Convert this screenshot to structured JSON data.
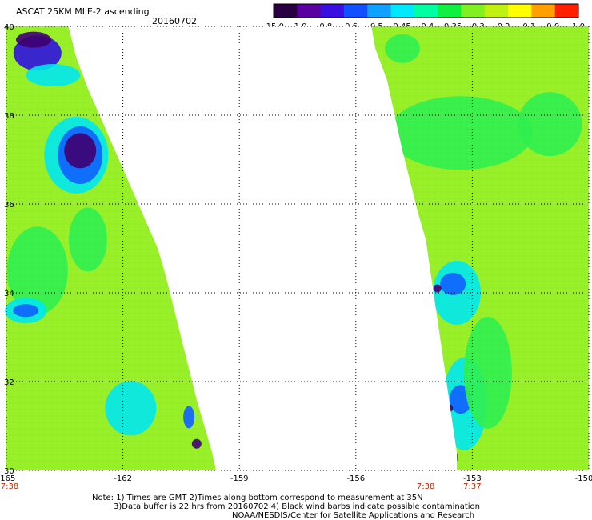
{
  "header": {
    "title": "ASCAT 25KM MLE-2 ascending",
    "date": "20160702"
  },
  "colorbar": {
    "labels": [
      "-15.0",
      "-1.0",
      "-0.8",
      "-0.6",
      "-0.5",
      "-0.45",
      "-0.4",
      "-0.35",
      "-0.3",
      "-0.2",
      "-0.1",
      "0.0",
      "1.0"
    ],
    "colors": [
      "#2a0040",
      "#5a00a0",
      "#3a10e0",
      "#1050ff",
      "#10a0ff",
      "#00e8ff",
      "#00ffa0",
      "#10f040",
      "#80f020",
      "#c0f010",
      "#ffff00",
      "#ffa000",
      "#ff2000"
    ]
  },
  "map": {
    "lon_range": [
      -165,
      -150
    ],
    "lat_range": [
      30,
      40
    ],
    "lon_ticks": [
      "-165",
      "-162",
      "-159",
      "-156",
      "-153",
      "-150"
    ],
    "lat_ticks": [
      "40",
      "38",
      "36",
      "34",
      "32",
      "30"
    ],
    "times": [
      {
        "label": "7:38",
        "lon": -165
      },
      {
        "label": "7:38",
        "lon": -154.2
      },
      {
        "label": "7:37",
        "lon": -153
      }
    ],
    "swath_colors": {
      "base": "#98f028",
      "green": "#30f050",
      "cyan": "#00e8f0",
      "blue": "#1060ff",
      "deep_blue": "#3010e0",
      "purple": "#400070"
    }
  },
  "notes": {
    "line1": "Note: 1) Times are GMT 2)Times along bottom correspond to measurement at 35N",
    "line2": "3)Data buffer is 22 hrs from 20160702 4) Black wind barbs indicate possible contamination",
    "line3": "NOAA/NESDIS/Center for Satellite Applications and Research"
  }
}
